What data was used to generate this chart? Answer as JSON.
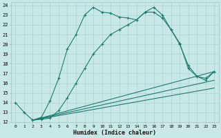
{
  "xlabel": "Humidex (Indice chaleur)",
  "bg_color": "#c8e8e8",
  "line_color": "#1a7a6e",
  "grid_color": "#b0d0d0",
  "xlim": [
    -0.5,
    23.5
  ],
  "ylim": [
    12,
    24.3
  ],
  "xticks": [
    0,
    1,
    2,
    3,
    4,
    5,
    6,
    7,
    8,
    9,
    10,
    11,
    12,
    13,
    14,
    15,
    16,
    17,
    18,
    19,
    20,
    21,
    22,
    23
  ],
  "yticks": [
    12,
    13,
    14,
    15,
    16,
    17,
    18,
    19,
    20,
    21,
    22,
    23,
    24
  ],
  "line1_x": [
    0,
    1,
    2,
    3,
    4,
    5,
    6,
    7,
    8,
    9,
    10,
    11,
    12,
    13,
    14,
    15,
    16,
    17,
    18,
    19,
    20,
    21,
    22,
    23
  ],
  "line1_y": [
    14.0,
    13.0,
    12.2,
    12.5,
    14.2,
    16.5,
    19.5,
    21.0,
    23.0,
    23.8,
    23.3,
    23.2,
    22.8,
    22.7,
    22.5,
    23.3,
    23.3,
    22.7,
    21.5,
    20.1,
    17.5,
    16.7,
    16.3,
    17.2
  ],
  "line2_x": [
    2,
    3,
    4,
    5,
    6,
    7,
    8,
    9,
    10,
    11,
    12,
    13,
    14,
    15,
    16,
    17,
    18,
    19,
    20,
    21,
    22,
    23
  ],
  "line2_y": [
    12.2,
    12.3,
    12.4,
    13.2,
    14.5,
    16.0,
    17.5,
    19.0,
    20.0,
    21.0,
    21.5,
    22.0,
    22.5,
    23.3,
    23.8,
    23.0,
    21.5,
    20.0,
    17.8,
    16.7,
    16.5,
    17.2
  ],
  "line3_x": [
    2,
    23
  ],
  "line3_y": [
    12.2,
    17.2
  ],
  "line4_x": [
    2,
    23
  ],
  "line4_y": [
    12.2,
    16.3
  ],
  "line5_x": [
    2,
    23
  ],
  "line5_y": [
    12.2,
    15.5
  ]
}
